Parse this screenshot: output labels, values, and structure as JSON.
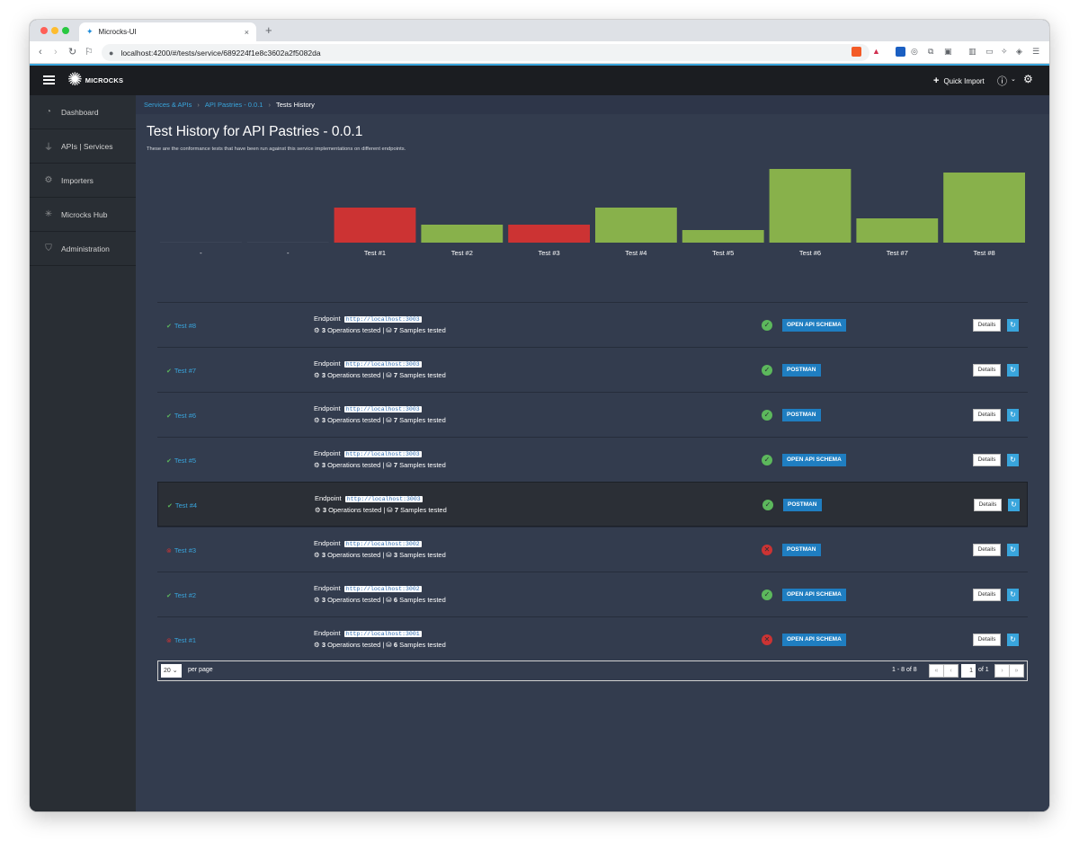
{
  "browser": {
    "tab_title": "Microcks-UI",
    "tab_close": "×",
    "new_tab": "+",
    "url": "localhost:4200/#/tests/service/689224f1e8c3602a2f5082da"
  },
  "topnav": {
    "brand": "MICROCKS",
    "quick_import": "Quick Import"
  },
  "sidebar": {
    "items": [
      {
        "label": "Dashboard",
        "icon": "dashboard-icon"
      },
      {
        "label": "APIs | Services",
        "icon": "plug-icon"
      },
      {
        "label": "Importers",
        "icon": "cogs-icon"
      },
      {
        "label": "Microcks Hub",
        "icon": "hub-icon"
      },
      {
        "label": "Administration",
        "icon": "shield-icon"
      }
    ]
  },
  "breadcrumb": {
    "items": [
      "Services & APIs",
      "API Pastries - 0.0.1"
    ],
    "current": "Tests History"
  },
  "page": {
    "title": "Test History for API Pastries - 0.0.1",
    "description": "These are the conformance tests that have been run against this service implementations on different endpoints."
  },
  "chart_data": {
    "type": "bar",
    "categories": [
      "-",
      "-",
      "Test #1",
      "Test #2",
      "Test #3",
      "Test #4",
      "Test #5",
      "Test #6",
      "Test #7",
      "Test #8"
    ],
    "values": [
      0,
      0,
      39,
      20,
      20,
      39,
      14,
      82,
      27,
      78
    ],
    "statuses": [
      "none",
      "none",
      "failure",
      "success",
      "failure",
      "success",
      "success",
      "success",
      "success",
      "success"
    ],
    "colors": {
      "success": "#88b14b",
      "failure": "#cc3333",
      "none": "#3b4456"
    },
    "ylim": [
      0,
      82
    ]
  },
  "tests": [
    {
      "name": "Test #8",
      "success": true,
      "endpoint_label": "Endpoint",
      "endpoint": "http://localhost:3003",
      "operations": "3",
      "operations_label": "Operations tested",
      "samples": "7",
      "samples_label": "Samples tested",
      "runner": "OPEN API SCHEMA",
      "details": "Details",
      "highlight": false
    },
    {
      "name": "Test #7",
      "success": true,
      "endpoint_label": "Endpoint",
      "endpoint": "http://localhost:3003",
      "operations": "3",
      "operations_label": "Operations tested",
      "samples": "7",
      "samples_label": "Samples tested",
      "runner": "POSTMAN",
      "details": "Details",
      "highlight": false
    },
    {
      "name": "Test #6",
      "success": true,
      "endpoint_label": "Endpoint",
      "endpoint": "http://localhost:3003",
      "operations": "3",
      "operations_label": "Operations tested",
      "samples": "7",
      "samples_label": "Samples tested",
      "runner": "POSTMAN",
      "details": "Details",
      "highlight": false
    },
    {
      "name": "Test #5",
      "success": true,
      "endpoint_label": "Endpoint",
      "endpoint": "http://localhost:3003",
      "operations": "3",
      "operations_label": "Operations tested",
      "samples": "7",
      "samples_label": "Samples tested",
      "runner": "OPEN API SCHEMA",
      "details": "Details",
      "highlight": false
    },
    {
      "name": "Test #4",
      "success": true,
      "endpoint_label": "Endpoint",
      "endpoint": "http://localhost:3003",
      "operations": "3",
      "operations_label": "Operations tested",
      "samples": "7",
      "samples_label": "Samples tested",
      "runner": "POSTMAN",
      "details": "Details",
      "highlight": true
    },
    {
      "name": "Test #3",
      "success": false,
      "endpoint_label": "Endpoint",
      "endpoint": "http://localhost:3002",
      "operations": "3",
      "operations_label": "Operations tested",
      "samples": "3",
      "samples_label": "Samples tested",
      "runner": "POSTMAN",
      "details": "Details",
      "highlight": false
    },
    {
      "name": "Test #2",
      "success": true,
      "endpoint_label": "Endpoint",
      "endpoint": "http://localhost:3002",
      "operations": "3",
      "operations_label": "Operations tested",
      "samples": "6",
      "samples_label": "Samples tested",
      "runner": "OPEN API SCHEMA",
      "details": "Details",
      "highlight": false
    },
    {
      "name": "Test #1",
      "success": false,
      "endpoint_label": "Endpoint",
      "endpoint": "http://localhost:3001",
      "operations": "3",
      "operations_label": "Operations tested",
      "samples": "6",
      "samples_label": "Samples tested",
      "runner": "OPEN API SCHEMA",
      "details": "Details",
      "highlight": false
    }
  ],
  "pagination": {
    "per_page": "20",
    "per_page_label": "per page",
    "range": "1 - 8 of  8",
    "page": "1",
    "of_pages": "of 1"
  }
}
